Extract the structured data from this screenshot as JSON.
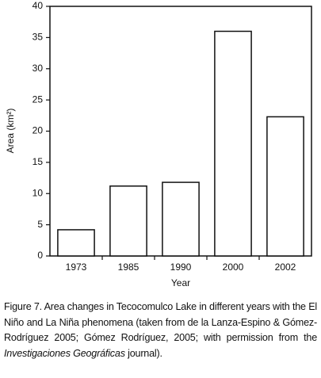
{
  "chart_data": {
    "type": "bar",
    "y_label": "Area (km²)",
    "x_label": "Year",
    "categories": [
      "1973",
      "1985",
      "1990",
      "2000",
      "2002"
    ],
    "values": [
      4.2,
      11.2,
      11.8,
      36,
      22.3
    ],
    "color": "#ffffff",
    "edge_color": "#111111",
    "ylim": [
      0,
      40
    ],
    "yticks": [
      0,
      5,
      10,
      15,
      20,
      25,
      30,
      35,
      40
    ],
    "grid": false
  },
  "caption": [
    "Figure 7. Area changes in Tecocomulco Lake in different years with the El Niño and La Niña phenomena (taken from de la Lanza-Espino & Gómez-Rodríguez 2005; Gómez Rodríguez, 2005; with permission from the ",
    "Investigaciones Geográficas",
    " journal)."
  ]
}
